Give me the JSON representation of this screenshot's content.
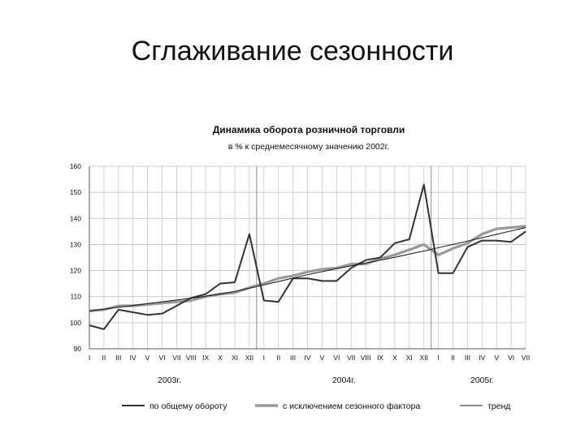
{
  "slide": {
    "title": "Сглаживание сезонности"
  },
  "chart_data": {
    "type": "line",
    "title": "Динамика оборота розничной торговли",
    "subtitle": "в % к среднемесячному значению 2002г.",
    "ylim": [
      90,
      160
    ],
    "yticks": [
      90,
      100,
      110,
      120,
      130,
      140,
      150,
      160
    ],
    "grid": true,
    "legend_position": "bottom",
    "categories": [
      "I",
      "II",
      "III",
      "IV",
      "V",
      "VI",
      "VII",
      "VIII",
      "IX",
      "X",
      "XI",
      "XII",
      "I",
      "II",
      "III",
      "IV",
      "V",
      "VI",
      "VII",
      "VIII",
      "IX",
      "X",
      "XI",
      "XII",
      "I",
      "II",
      "III",
      "IV",
      "V",
      "VI",
      "VII"
    ],
    "year_labels": [
      {
        "label": "2003г.",
        "center_index": 5.5
      },
      {
        "label": "2004г.",
        "center_index": 17.5
      },
      {
        "label": "2005г.",
        "center_index": 27
      }
    ],
    "year_dividers": [
      11.5,
      23.5
    ],
    "series": [
      {
        "name": "по общему обороту",
        "color": "#333333",
        "values": [
          99.0,
          97.5,
          105.0,
          104.0,
          103.0,
          103.5,
          106.5,
          109.5,
          111.0,
          115.0,
          115.5,
          134.0,
          108.5,
          108.0,
          117.0,
          117.0,
          116.0,
          116.0,
          121.0,
          124.0,
          125.0,
          130.5,
          132.0,
          153.0,
          119.0,
          119.0,
          129.0,
          131.5,
          131.5,
          131.0,
          135.0
        ]
      },
      {
        "name": "с исключением сезонного фактора",
        "color": "#999999",
        "values": [
          104.5,
          105.0,
          106.5,
          106.5,
          107.0,
          107.5,
          108.0,
          108.5,
          110.0,
          111.0,
          111.5,
          113.5,
          115.0,
          117.0,
          118.0,
          119.5,
          120.5,
          121.0,
          122.5,
          122.5,
          124.5,
          126.0,
          128.0,
          130.0,
          126.0,
          128.5,
          130.5,
          134.0,
          136.0,
          136.5,
          137.0
        ]
      },
      {
        "name": "тренд",
        "color": "#111111",
        "values": [
          104.5,
          105.2,
          105.9,
          106.6,
          107.3,
          108.0,
          108.7,
          109.4,
          110.2,
          111.0,
          112.0,
          113.2,
          114.5,
          115.8,
          117.1,
          118.4,
          119.6,
          120.7,
          121.8,
          122.9,
          124.0,
          125.1,
          126.3,
          127.5,
          128.8,
          130.0,
          131.3,
          132.6,
          133.9,
          135.2,
          136.5
        ]
      }
    ]
  }
}
